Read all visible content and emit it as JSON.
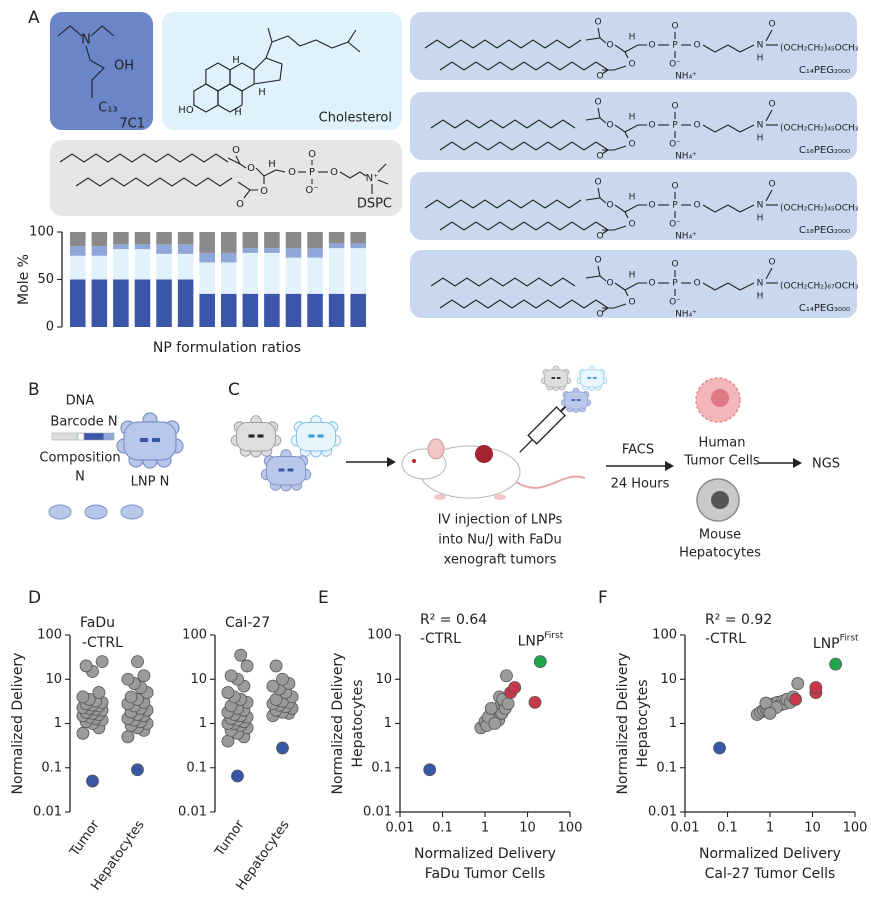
{
  "panel_labels": [
    "A",
    "B",
    "C",
    "D",
    "E",
    "F"
  ],
  "structures": {
    "lipid_7c1": {
      "atoms": [
        "N",
        "OH",
        "C₁₃"
      ],
      "name": "7C1"
    },
    "cholesterol": {
      "atoms": [
        "H",
        "H",
        "H",
        "HO"
      ],
      "name": "Cholesterol"
    },
    "dspc": {
      "atoms": [
        "O",
        "O",
        "H",
        "O",
        "P",
        "O",
        "O",
        "O⁻",
        "O",
        "O",
        "N⁺"
      ],
      "name": "DSPC"
    },
    "peg_lipids": [
      {
        "atoms": [
          "O",
          "O",
          "H",
          "O",
          "P",
          "O",
          "O",
          "O⁻",
          "O",
          "O",
          "N",
          "H",
          "O",
          "NH₄⁺"
        ],
        "formula": "(OCH₂CH₂)₄₅OCH₃",
        "name": "C₁₄PEG₂₀₀₀"
      },
      {
        "atoms": [
          "O",
          "O",
          "H",
          "O",
          "P",
          "O",
          "O",
          "O⁻",
          "O",
          "O",
          "N",
          "H",
          "O",
          "NH₄⁺"
        ],
        "formula": "(OCH₂CH₂)₄₅OCH₃",
        "name": "C₁₆PEG₂₀₀₀"
      },
      {
        "atoms": [
          "O",
          "O",
          "H",
          "O",
          "P",
          "O",
          "O",
          "O⁻",
          "O",
          "O",
          "N",
          "H",
          "O",
          "NH₄⁺"
        ],
        "formula": "(OCH₂CH₂)₄₅OCH₃",
        "name": "C₁₈PEG₂₀₀₀"
      },
      {
        "atoms": [
          "O",
          "O",
          "H",
          "O",
          "P",
          "O",
          "O",
          "O⁻",
          "O",
          "O",
          "N",
          "H",
          "O",
          "NH₄⁺"
        ],
        "formula": "(OCH₂CH₂)₆₇OCH₃",
        "name": "C₁₄PEG₃₀₀₀"
      }
    ]
  },
  "diagram_b": {
    "dna": "DNA",
    "barcode": "Barcode N",
    "composition": "Composition",
    "composition_n": "N",
    "lnp": "LNP N"
  },
  "diagram_c": {
    "injection": [
      "IV injection of LNPs",
      "into Nu/J with FaDu",
      "xenograft tumors"
    ],
    "facs": "FACS",
    "time": "24 Hours",
    "human": [
      "Human",
      "Tumor Cells"
    ],
    "mouse": [
      "Mouse",
      "Hepatocytes"
    ],
    "ngs": "NGS"
  },
  "chart_data": [
    {
      "type": "bar",
      "stacked": true,
      "y_label": "Mole %",
      "x_label": "NP formulation ratios",
      "categories": [
        null,
        null,
        null,
        null,
        null,
        null,
        null,
        null,
        null,
        null,
        null,
        null,
        null,
        null
      ],
      "ylim": [
        0,
        100
      ],
      "yticks": [
        0,
        50,
        100
      ],
      "series": [
        {
          "color": "#3b55a8",
          "values": [
            50,
            50,
            50,
            50,
            50,
            50,
            35,
            35,
            35,
            35,
            35,
            35,
            35,
            35
          ]
        },
        {
          "color": "#e2f2fb",
          "values": [
            25,
            25,
            32,
            32,
            27,
            27,
            33,
            33,
            43,
            43,
            38,
            38,
            48,
            48
          ]
        },
        {
          "color": "#8fa6d8",
          "values": [
            10,
            10,
            5,
            5,
            10,
            10,
            10,
            10,
            5,
            5,
            10,
            10,
            5,
            5
          ]
        },
        {
          "color": "#8a8a8a",
          "values": [
            15,
            15,
            13,
            13,
            13,
            13,
            22,
            22,
            17,
            17,
            17,
            17,
            12,
            12
          ]
        }
      ]
    },
    {
      "type": "strip",
      "title": "FaDu",
      "y_label": "Normalized Delivery",
      "log_y": true,
      "categories": [
        "Tumor",
        "Hepatocytes"
      ],
      "ylim": [
        0.01,
        100
      ],
      "yticks": [
        0.01,
        0.1,
        1,
        10,
        100
      ],
      "series": [
        {
          "color": "#9b9b9b",
          "values": [
            [
              0.6,
              0.8,
              1.0,
              1.1,
              1.2,
              1.3,
              1.4,
              1.5,
              1.6,
              1.7,
              1.8,
              2.0,
              2.1,
              2.2,
              2.3,
              2.5,
              2.6,
              2.8,
              3.0,
              3.2,
              3.5,
              4,
              5,
              15,
              20,
              25
            ],
            [
              0.5,
              0.7,
              0.8,
              0.9,
              1.0,
              1.1,
              1.2,
              1.3,
              1.5,
              1.6,
              1.8,
              2.0,
              2.2,
              2.5,
              2.8,
              3.0,
              3.5,
              4,
              5,
              6.5,
              8,
              10,
              12,
              25
            ]
          ]
        },
        {
          "name": "-CTRL",
          "color": "#3a57a6",
          "values": [
            0.05,
            0.09
          ]
        }
      ]
    },
    {
      "type": "strip",
      "title": "Cal-27",
      "log_y": true,
      "categories": [
        "Tumor",
        "Hepatocytes"
      ],
      "ylim": [
        0.01,
        100
      ],
      "yticks": [
        0.01,
        0.1,
        1,
        10,
        100
      ],
      "series": [
        {
          "color": "#9b9b9b",
          "values": [
            [
              0.4,
              0.5,
              0.6,
              0.7,
              0.8,
              0.9,
              1.0,
              1.0,
              1.1,
              1.2,
              1.3,
              1.4,
              1.5,
              1.6,
              1.8,
              2.0,
              2.2,
              2.5,
              3.0,
              3.5,
              4,
              5,
              7,
              10,
              12,
              20,
              35
            ],
            [
              1.5,
              1.7,
              1.8,
              2.0,
              2.2,
              2.4,
              2.6,
              2.8,
              3.0,
              3.2,
              3.5,
              4,
              5,
              6,
              7,
              8,
              10,
              20
            ]
          ]
        },
        {
          "color": "#3a57a6",
          "values": [
            0.065,
            0.28
          ]
        }
      ]
    },
    {
      "type": "scatter",
      "annotation": "R² = 0.64",
      "log_x": true,
      "log_y": true,
      "x_label": [
        "Normalized Delivery",
        "FaDu Tumor Cells"
      ],
      "y_label": [
        "Normalized Delivery",
        "Hepatocytes"
      ],
      "xlim": [
        0.01,
        100
      ],
      "ylim": [
        0.01,
        100
      ],
      "xticks": [
        0.01,
        0.1,
        1,
        10,
        100
      ],
      "yticks": [
        0.01,
        0.1,
        1,
        10,
        100
      ],
      "series": [
        {
          "color": "#9b9b9b",
          "x": [
            0.8,
            1.0,
            1.1,
            1.3,
            1.5,
            1.6,
            1.8,
            2.0,
            2.1,
            2.3,
            2.5,
            2.8,
            3.0,
            3.2,
            1.2,
            1.7,
            2.2,
            2.6,
            3.5,
            1.4
          ],
          "y": [
            0.8,
            1.1,
            0.9,
            1.5,
            1.3,
            1.8,
            1.6,
            2.0,
            1.2,
            2.5,
            1.7,
            3.0,
            2.2,
            12,
            1.4,
            1.0,
            4.0,
            3.5,
            2.8,
            2.2
          ]
        },
        {
          "color": "#c8374a",
          "x": [
            4,
            5,
            15
          ],
          "y": [
            5,
            6.5,
            3
          ]
        },
        {
          "name": "LNP",
          "name_superscript": "First",
          "color": "#1fa64a",
          "x": [
            20
          ],
          "y": [
            25
          ]
        },
        {
          "name": "-CTRL",
          "color": "#3a57a6",
          "x": [
            0.05
          ],
          "y": [
            0.09
          ]
        }
      ]
    },
    {
      "type": "scatter",
      "annotation": "R² = 0.92",
      "log_x": true,
      "log_y": true,
      "x_label": [
        "Normalized Delivery",
        "Cal-27 Tumor Cells"
      ],
      "y_label": [
        "Normalized Delivery",
        "Hepatocytes"
      ],
      "xlim": [
        0.01,
        100
      ],
      "ylim": [
        0.01,
        100
      ],
      "xticks": [
        0.01,
        0.1,
        1,
        10,
        100
      ],
      "yticks": [
        0.01,
        0.1,
        1,
        10,
        100
      ],
      "series": [
        {
          "color": "#9b9b9b",
          "x": [
            0.5,
            0.6,
            0.7,
            0.8,
            0.9,
            1.0,
            1.1,
            1.2,
            1.3,
            1.5,
            1.7,
            2.0,
            2.2,
            2.5,
            3.0,
            3.5,
            4.5,
            1.4,
            0.8,
            1.0
          ],
          "y": [
            1.6,
            1.8,
            2.0,
            2.2,
            1.9,
            2.5,
            2.1,
            2.8,
            2.4,
            3.0,
            2.6,
            3.2,
            2.8,
            3.5,
            3.0,
            4.0,
            8,
            2.3,
            2.9,
            1.7
          ]
        },
        {
          "color": "#c8374a",
          "x": [
            4,
            12,
            12
          ],
          "y": [
            3.5,
            5,
            6.5
          ]
        },
        {
          "name": "LNP",
          "name_superscript": "First",
          "color": "#1fa64a",
          "x": [
            35
          ],
          "y": [
            22
          ]
        },
        {
          "name": "-CTRL",
          "color": "#3a57a6",
          "x": [
            0.065
          ],
          "y": [
            0.28
          ]
        }
      ]
    }
  ]
}
